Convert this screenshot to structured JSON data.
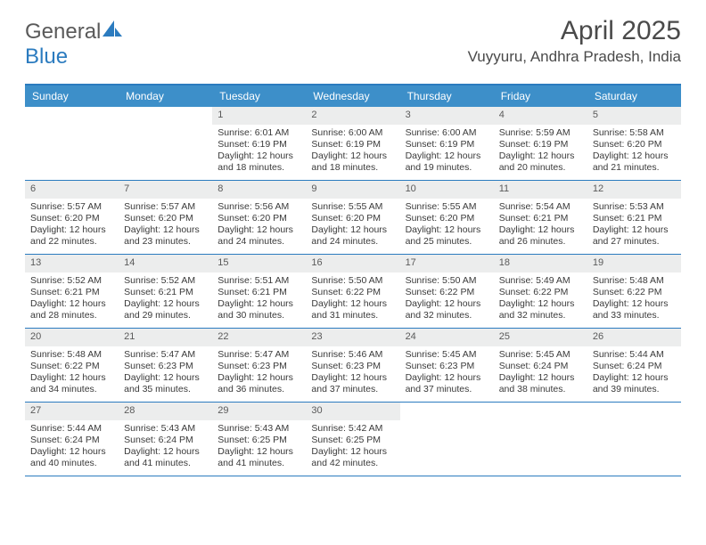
{
  "brand": {
    "text1": "General",
    "text2": "Blue"
  },
  "title": "April 2025",
  "location": "Vuyyuru, Andhra Pradesh, India",
  "colors": {
    "header_bg": "#3d8fc9",
    "border": "#2b7bbf",
    "daynum_bg": "#eceded",
    "text": "#3a3a3a",
    "title_text": "#4a4a4a"
  },
  "day_headers": [
    "Sunday",
    "Monday",
    "Tuesday",
    "Wednesday",
    "Thursday",
    "Friday",
    "Saturday"
  ],
  "weeks": [
    [
      null,
      null,
      {
        "n": "1",
        "sr": "6:01 AM",
        "ss": "6:19 PM",
        "dl": "12 hours and 18 minutes."
      },
      {
        "n": "2",
        "sr": "6:00 AM",
        "ss": "6:19 PM",
        "dl": "12 hours and 18 minutes."
      },
      {
        "n": "3",
        "sr": "6:00 AM",
        "ss": "6:19 PM",
        "dl": "12 hours and 19 minutes."
      },
      {
        "n": "4",
        "sr": "5:59 AM",
        "ss": "6:19 PM",
        "dl": "12 hours and 20 minutes."
      },
      {
        "n": "5",
        "sr": "5:58 AM",
        "ss": "6:20 PM",
        "dl": "12 hours and 21 minutes."
      }
    ],
    [
      {
        "n": "6",
        "sr": "5:57 AM",
        "ss": "6:20 PM",
        "dl": "12 hours and 22 minutes."
      },
      {
        "n": "7",
        "sr": "5:57 AM",
        "ss": "6:20 PM",
        "dl": "12 hours and 23 minutes."
      },
      {
        "n": "8",
        "sr": "5:56 AM",
        "ss": "6:20 PM",
        "dl": "12 hours and 24 minutes."
      },
      {
        "n": "9",
        "sr": "5:55 AM",
        "ss": "6:20 PM",
        "dl": "12 hours and 24 minutes."
      },
      {
        "n": "10",
        "sr": "5:55 AM",
        "ss": "6:20 PM",
        "dl": "12 hours and 25 minutes."
      },
      {
        "n": "11",
        "sr": "5:54 AM",
        "ss": "6:21 PM",
        "dl": "12 hours and 26 minutes."
      },
      {
        "n": "12",
        "sr": "5:53 AM",
        "ss": "6:21 PM",
        "dl": "12 hours and 27 minutes."
      }
    ],
    [
      {
        "n": "13",
        "sr": "5:52 AM",
        "ss": "6:21 PM",
        "dl": "12 hours and 28 minutes."
      },
      {
        "n": "14",
        "sr": "5:52 AM",
        "ss": "6:21 PM",
        "dl": "12 hours and 29 minutes."
      },
      {
        "n": "15",
        "sr": "5:51 AM",
        "ss": "6:21 PM",
        "dl": "12 hours and 30 minutes."
      },
      {
        "n": "16",
        "sr": "5:50 AM",
        "ss": "6:22 PM",
        "dl": "12 hours and 31 minutes."
      },
      {
        "n": "17",
        "sr": "5:50 AM",
        "ss": "6:22 PM",
        "dl": "12 hours and 32 minutes."
      },
      {
        "n": "18",
        "sr": "5:49 AM",
        "ss": "6:22 PM",
        "dl": "12 hours and 32 minutes."
      },
      {
        "n": "19",
        "sr": "5:48 AM",
        "ss": "6:22 PM",
        "dl": "12 hours and 33 minutes."
      }
    ],
    [
      {
        "n": "20",
        "sr": "5:48 AM",
        "ss": "6:22 PM",
        "dl": "12 hours and 34 minutes."
      },
      {
        "n": "21",
        "sr": "5:47 AM",
        "ss": "6:23 PM",
        "dl": "12 hours and 35 minutes."
      },
      {
        "n": "22",
        "sr": "5:47 AM",
        "ss": "6:23 PM",
        "dl": "12 hours and 36 minutes."
      },
      {
        "n": "23",
        "sr": "5:46 AM",
        "ss": "6:23 PM",
        "dl": "12 hours and 37 minutes."
      },
      {
        "n": "24",
        "sr": "5:45 AM",
        "ss": "6:23 PM",
        "dl": "12 hours and 37 minutes."
      },
      {
        "n": "25",
        "sr": "5:45 AM",
        "ss": "6:24 PM",
        "dl": "12 hours and 38 minutes."
      },
      {
        "n": "26",
        "sr": "5:44 AM",
        "ss": "6:24 PM",
        "dl": "12 hours and 39 minutes."
      }
    ],
    [
      {
        "n": "27",
        "sr": "5:44 AM",
        "ss": "6:24 PM",
        "dl": "12 hours and 40 minutes."
      },
      {
        "n": "28",
        "sr": "5:43 AM",
        "ss": "6:24 PM",
        "dl": "12 hours and 41 minutes."
      },
      {
        "n": "29",
        "sr": "5:43 AM",
        "ss": "6:25 PM",
        "dl": "12 hours and 41 minutes."
      },
      {
        "n": "30",
        "sr": "5:42 AM",
        "ss": "6:25 PM",
        "dl": "12 hours and 42 minutes."
      },
      null,
      null,
      null
    ]
  ],
  "labels": {
    "sunrise": "Sunrise:",
    "sunset": "Sunset:",
    "daylight": "Daylight:"
  }
}
